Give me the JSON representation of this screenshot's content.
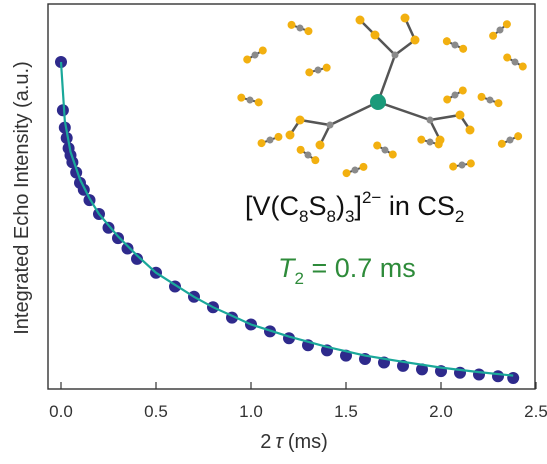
{
  "chart_data": {
    "type": "scatter",
    "title": "",
    "xlabel_prefix": "2",
    "xlabel_symbol": "τ",
    "xlabel_unit": "(ms)",
    "ylabel": "Integrated Echo Intensity (a.u.)",
    "xlim": [
      -0.05,
      2.5
    ],
    "ylim": [
      0,
      1
    ],
    "xticks": [
      "0.0",
      "0.5",
      "1.0",
      "1.5",
      "2.0",
      "2.5"
    ],
    "xtick_values": [
      0.0,
      0.5,
      1.0,
      1.5,
      2.0,
      2.5
    ],
    "y_ticks_labeled": false,
    "grid": false,
    "colors": {
      "points": "#2e2a8c",
      "fit": "#1aa89a",
      "t2_text": "#2e8b3a",
      "axes": "#333333"
    },
    "series": [
      {
        "type": "scatter",
        "description_source": "measured data",
        "x": [
          0.0,
          0.01,
          0.02,
          0.03,
          0.04,
          0.05,
          0.06,
          0.08,
          0.1,
          0.12,
          0.15,
          0.2,
          0.25,
          0.3,
          0.35,
          0.4,
          0.5,
          0.6,
          0.7,
          0.8,
          0.9,
          1.0,
          1.1,
          1.2,
          1.3,
          1.4,
          1.5,
          1.6,
          1.7,
          1.8,
          1.9,
          2.0,
          2.1,
          2.2,
          2.3,
          2.38
        ],
        "y": [
          0.93,
          0.79,
          0.74,
          0.71,
          0.68,
          0.66,
          0.64,
          0.61,
          0.58,
          0.56,
          0.53,
          0.49,
          0.45,
          0.42,
          0.39,
          0.36,
          0.32,
          0.28,
          0.25,
          0.22,
          0.19,
          0.17,
          0.15,
          0.13,
          0.11,
          0.095,
          0.08,
          0.07,
          0.06,
          0.05,
          0.04,
          0.035,
          0.03,
          0.025,
          0.02,
          0.015
        ]
      },
      {
        "type": "line",
        "description_source": "fit",
        "x": [
          0.0,
          0.02,
          0.05,
          0.1,
          0.15,
          0.2,
          0.3,
          0.4,
          0.5,
          0.6,
          0.7,
          0.8,
          0.9,
          1.0,
          1.2,
          1.4,
          1.6,
          1.8,
          2.0,
          2.2,
          2.38
        ],
        "y": [
          0.93,
          0.76,
          0.67,
          0.59,
          0.535,
          0.49,
          0.425,
          0.37,
          0.32,
          0.285,
          0.25,
          0.22,
          0.195,
          0.17,
          0.135,
          0.105,
          0.08,
          0.062,
          0.045,
          0.032,
          0.022
        ]
      }
    ],
    "annotations": {
      "formula": {
        "open": "[V(C",
        "sub1": "8",
        "mid": "S",
        "sub2": "8",
        "close": ")",
        "sub3": "3",
        "bracket_close": "]",
        "sup": "2−",
        "suffix": " in CS",
        "suffix_sub": "2"
      },
      "t2": {
        "symbol": "T",
        "sub": "2",
        "rest": " = 0.7 ms"
      }
    },
    "inset": {
      "content": "molecular structure",
      "colors": {
        "sulfur": "#f2b010",
        "carbon": "#8a8a8a",
        "vanadium": "#1a9a7a",
        "bond": "#555555"
      }
    }
  }
}
